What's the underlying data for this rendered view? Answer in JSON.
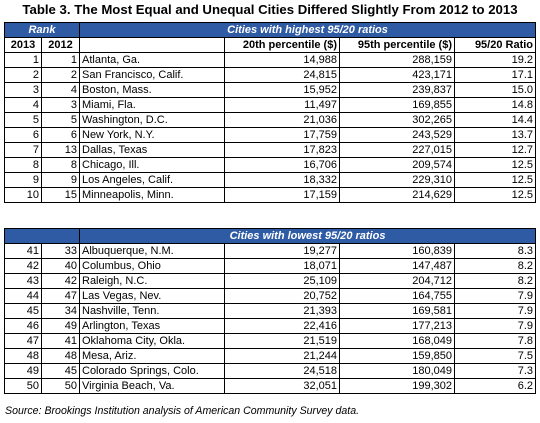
{
  "title": "Table 3. The Most Equal and Unequal Cities Differed Slightly From 2012 to 2013",
  "rank_label": "Rank",
  "headers": {
    "year1": "2013",
    "year2": "2012",
    "p20": "20th percentile ($)",
    "p95": "95th percentile ($)",
    "ratio": "95/20 Ratio"
  },
  "section_high_label": "Cities with highest 95/20 ratios",
  "section_low_label": "Cities with lowest 95/20 ratios",
  "highest": [
    {
      "r2013": "1",
      "r2012": "1",
      "city": "Atlanta, Ga.",
      "p20": "14,988",
      "p95": "288,159",
      "ratio": "19.2"
    },
    {
      "r2013": "2",
      "r2012": "2",
      "city": "San Francisco, Calif.",
      "p20": "24,815",
      "p95": "423,171",
      "ratio": "17.1"
    },
    {
      "r2013": "3",
      "r2012": "4",
      "city": "Boston, Mass.",
      "p20": "15,952",
      "p95": "239,837",
      "ratio": "15.0"
    },
    {
      "r2013": "4",
      "r2012": "3",
      "city": "Miami, Fla.",
      "p20": "11,497",
      "p95": "169,855",
      "ratio": "14.8"
    },
    {
      "r2013": "5",
      "r2012": "5",
      "city": "Washington, D.C.",
      "p20": "21,036",
      "p95": "302,265",
      "ratio": "14.4"
    },
    {
      "r2013": "6",
      "r2012": "6",
      "city": "New York, N.Y.",
      "p20": "17,759",
      "p95": "243,529",
      "ratio": "13.7"
    },
    {
      "r2013": "7",
      "r2012": "13",
      "city": "Dallas, Texas",
      "p20": "17,823",
      "p95": "227,015",
      "ratio": "12.7"
    },
    {
      "r2013": "8",
      "r2012": "8",
      "city": "Chicago, Ill.",
      "p20": "16,706",
      "p95": "209,574",
      "ratio": "12.5"
    },
    {
      "r2013": "9",
      "r2012": "9",
      "city": "Los Angeles, Calif.",
      "p20": "18,332",
      "p95": "229,310",
      "ratio": "12.5"
    },
    {
      "r2013": "10",
      "r2012": "15",
      "city": "Minneapolis, Minn.",
      "p20": "17,159",
      "p95": "214,629",
      "ratio": "12.5"
    }
  ],
  "lowest": [
    {
      "r2013": "41",
      "r2012": "33",
      "city": "Albuquerque, N.M.",
      "p20": "19,277",
      "p95": "160,839",
      "ratio": "8.3"
    },
    {
      "r2013": "42",
      "r2012": "40",
      "city": "Columbus, Ohio",
      "p20": "18,071",
      "p95": "147,487",
      "ratio": "8.2"
    },
    {
      "r2013": "43",
      "r2012": "42",
      "city": "Raleigh, N.C.",
      "p20": "25,109",
      "p95": "204,712",
      "ratio": "8.2"
    },
    {
      "r2013": "44",
      "r2012": "47",
      "city": "Las Vegas, Nev.",
      "p20": "20,752",
      "p95": "164,755",
      "ratio": "7.9"
    },
    {
      "r2013": "45",
      "r2012": "34",
      "city": "Nashville, Tenn.",
      "p20": "21,393",
      "p95": "169,581",
      "ratio": "7.9"
    },
    {
      "r2013": "46",
      "r2012": "49",
      "city": "Arlington, Texas",
      "p20": "22,416",
      "p95": "177,213",
      "ratio": "7.9"
    },
    {
      "r2013": "47",
      "r2012": "41",
      "city": "Oklahoma City, Okla.",
      "p20": "21,519",
      "p95": "168,049",
      "ratio": "7.8"
    },
    {
      "r2013": "48",
      "r2012": "48",
      "city": "Mesa, Ariz.",
      "p20": "21,244",
      "p95": "159,850",
      "ratio": "7.5"
    },
    {
      "r2013": "49",
      "r2012": "45",
      "city": "Colorado Springs, Colo.",
      "p20": "24,518",
      "p95": "180,049",
      "ratio": "7.3"
    },
    {
      "r2013": "50",
      "r2012": "50",
      "city": "Virginia Beach, Va.",
      "p20": "32,051",
      "p95": "199,302",
      "ratio": "6.2"
    }
  ],
  "source": "Source: Brookings Institution analysis of American Community Survey data.",
  "colors": {
    "band": "#2F5BA5",
    "band_text": "#FFFFFF",
    "border": "#000000"
  }
}
